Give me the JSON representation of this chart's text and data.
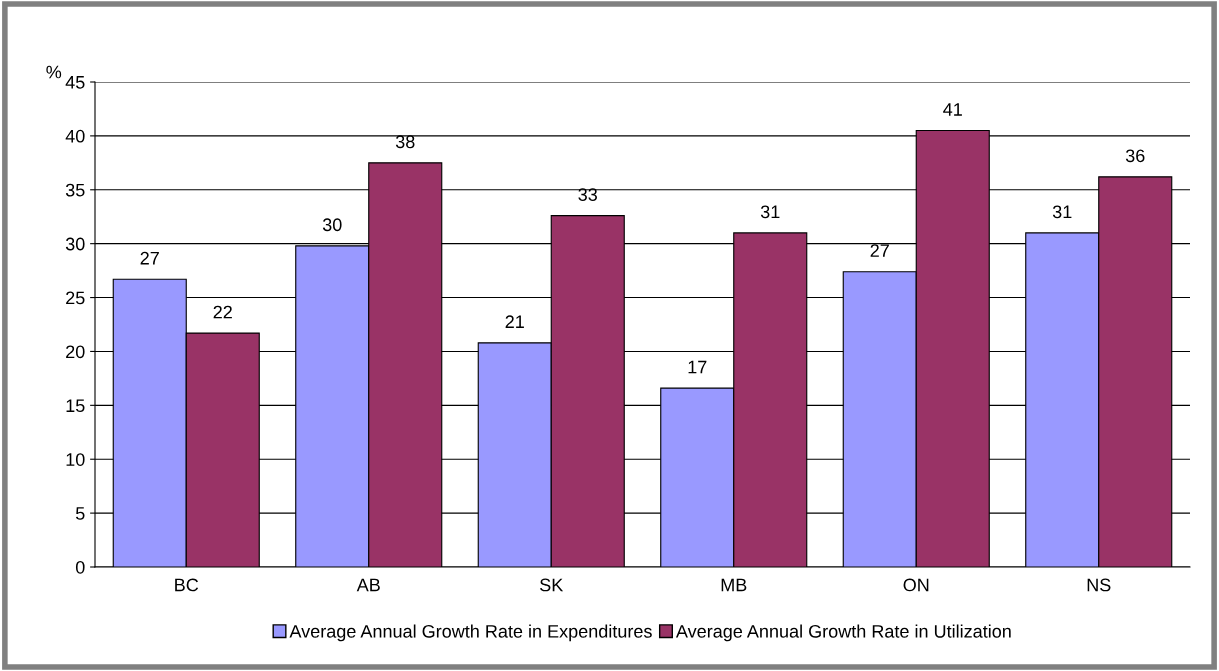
{
  "chart_data": {
    "type": "bar",
    "ylabel": "%",
    "categories": [
      "BC",
      "AB",
      "SK",
      "MB",
      "ON",
      "NS"
    ],
    "series": [
      {
        "name": "Average Annual Growth Rate in Expenditures",
        "color": "#9999ff",
        "values": [
          26.7,
          29.8,
          20.8,
          16.6,
          27.4,
          31.0
        ],
        "value_labels": [
          "27",
          "30",
          "21",
          "17",
          "27",
          "31"
        ]
      },
      {
        "name": "Average Annual Growth Rate in Utilization",
        "color": "#993366",
        "values": [
          21.7,
          37.5,
          32.6,
          31.0,
          40.5,
          36.2
        ],
        "value_labels": [
          "22",
          "38",
          "33",
          "31",
          "41",
          "36"
        ]
      }
    ],
    "ylim": [
      0,
      45
    ],
    "yticks": [
      0,
      5,
      10,
      15,
      20,
      25,
      30,
      35,
      40,
      45
    ],
    "grid": "y",
    "legend": "bottom"
  }
}
